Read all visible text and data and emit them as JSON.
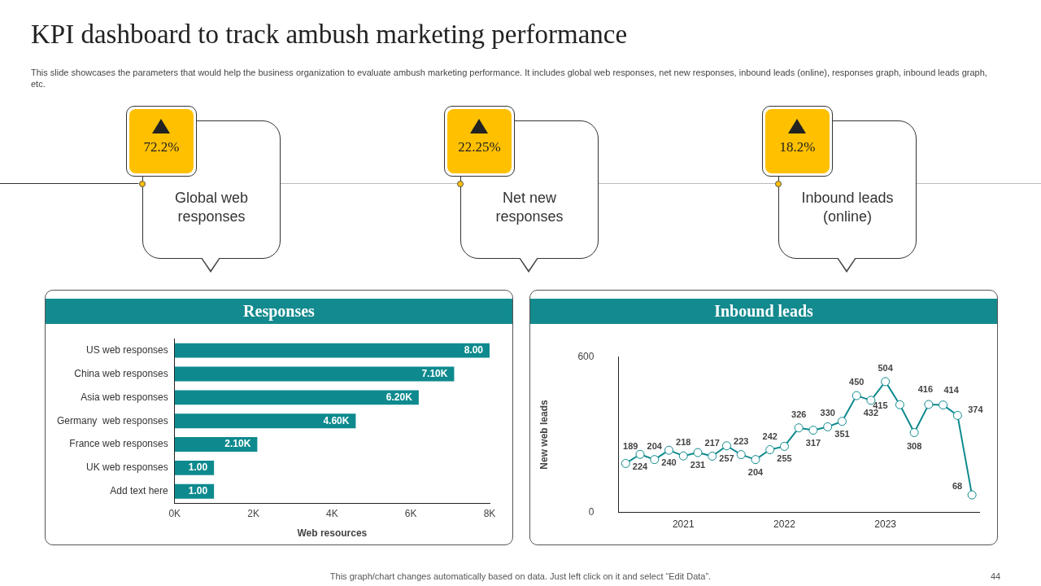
{
  "chart_data": [
    {
      "type": "other",
      "title": "KPI dashboard to track ambush marketing performance",
      "subtitle": "This slide showcases the parameters that would help the business organization to evaluate ambush marketing performance. It includes global web responses, net new responses, inbound leads (online), responses graph, inbound leads graph, etc.",
      "annotations": [
        "72.2%",
        "Global web responses",
        "22.25%",
        "Net new responses",
        "18.2%",
        "Inbound leads (online)",
        "This graph/chart changes automatically based on data. Just left click on it and select “Edit Data”.",
        "44"
      ]
    },
    {
      "type": "bar",
      "title": "Responses",
      "orientation": "horizontal",
      "categories": [
        "US web responses",
        "China web responses",
        "Asia web responses",
        "Germany  web responses",
        "France web responses",
        "UK web responses",
        "Add text here"
      ],
      "values": [
        8,
        7.1,
        6.2,
        4.6,
        2.1,
        1,
        1
      ],
      "value_labels": [
        "8.00",
        "7.10K",
        "6.20K",
        "4.60K",
        "2.10K",
        "1.00",
        "1.00"
      ],
      "color": "#0e8a8e",
      "xlim": [
        0,
        8
      ],
      "xticks": [
        {
          "value": 0,
          "label": "0K"
        },
        {
          "value": 2,
          "label": "2K"
        },
        {
          "value": 4,
          "label": "4K"
        },
        {
          "value": 6,
          "label": "6K"
        },
        {
          "value": 8,
          "label": "8K"
        }
      ],
      "xlabel": "Web resources"
    },
    {
      "type": "line",
      "title": "Inbound leads",
      "categories": [
        null,
        null,
        null,
        null,
        "2021",
        null,
        null,
        null,
        null,
        null,
        null,
        "2022",
        null,
        null,
        null,
        null,
        null,
        null,
        "2023",
        null,
        null,
        null,
        null,
        null,
        null
      ],
      "values": [
        189,
        224,
        204,
        240,
        218,
        231,
        217,
        257,
        223,
        204,
        242,
        255,
        326,
        317,
        330,
        351,
        450,
        432,
        504,
        415,
        308,
        416,
        414,
        374,
        68
      ],
      "color": "#0e8a8e",
      "marker": "circle",
      "data_labels": true,
      "ylim": [
        0,
        600
      ],
      "yticks": [
        0,
        600
      ],
      "ylabel": "New web leads"
    }
  ]
}
